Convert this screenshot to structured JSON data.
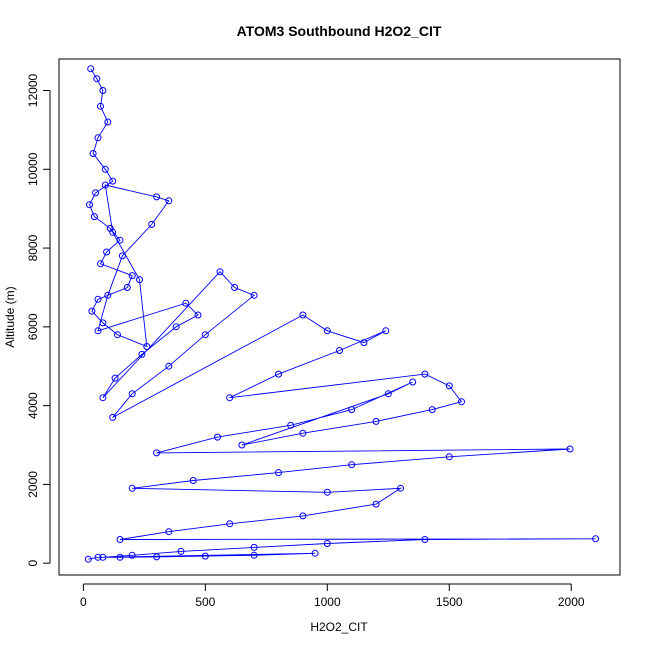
{
  "chart_data": {
    "type": "scatter",
    "title": "ATOM3 Southbound H2O2_CIT",
    "xlabel": "H2O2_CIT",
    "ylabel": "Altitude (m)",
    "xlim": [
      -100,
      2200
    ],
    "ylim": [
      -300,
      12800
    ],
    "xticks": [
      0,
      500,
      1000,
      1500,
      2000
    ],
    "yticks": [
      0,
      2000,
      4000,
      6000,
      8000,
      10000,
      12000
    ],
    "style": "points connected by lines (type = b)",
    "marker": "open circle",
    "color": "#0000ff",
    "series": [
      {
        "x": [
          30,
          55,
          80,
          70,
          100,
          60,
          40,
          90,
          120,
          50,
          25,
          45,
          110,
          150,
          95,
          70,
          200,
          180,
          60,
          35,
          80,
          140,
          260,
          230,
          120,
          90,
          300,
          350,
          280,
          160,
          100,
          60,
          420,
          470,
          380,
          240,
          130,
          80,
          560,
          620,
          700,
          500,
          350,
          200,
          120,
          900,
          1000,
          1150,
          1240,
          1050,
          800,
          600,
          1400,
          1500,
          1550,
          1430,
          1200,
          900,
          650,
          1250,
          1350,
          1100,
          850,
          550,
          300,
          1995,
          1500,
          1100,
          800,
          450,
          200,
          1000,
          1300,
          1200,
          900,
          600,
          350,
          150,
          2100,
          1400,
          1000,
          700,
          400,
          200,
          80,
          950,
          700,
          500,
          300,
          150,
          60,
          20
        ],
        "y": [
          12550,
          12300,
          12000,
          11600,
          11200,
          10800,
          10400,
          10000,
          9700,
          9400,
          9100,
          8800,
          8500,
          8200,
          7900,
          7600,
          7300,
          7000,
          6700,
          6400,
          6100,
          5800,
          5500,
          7200,
          8400,
          9600,
          9300,
          9200,
          8600,
          7800,
          6800,
          5900,
          6600,
          6300,
          6000,
          5300,
          4700,
          4200,
          7400,
          7000,
          6800,
          5800,
          5000,
          4300,
          3700,
          6300,
          5900,
          5600,
          5900,
          5400,
          4800,
          4200,
          4800,
          4500,
          4100,
          3900,
          3600,
          3300,
          3000,
          4300,
          4600,
          3900,
          3500,
          3200,
          2800,
          2900,
          2700,
          2500,
          2300,
          2100,
          1900,
          1800,
          1900,
          1500,
          1200,
          1000,
          800,
          600,
          620,
          600,
          500,
          400,
          300,
          200,
          150,
          250,
          200,
          180,
          160,
          150,
          150,
          100
        ]
      }
    ]
  }
}
